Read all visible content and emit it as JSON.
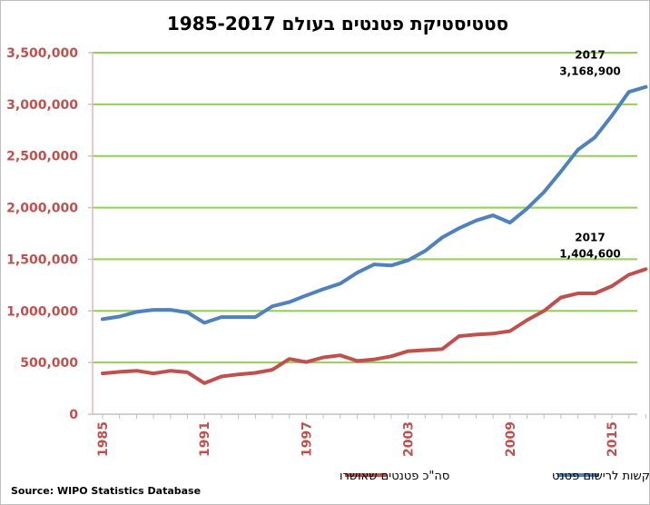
{
  "chart_data": {
    "type": "line",
    "title": "סטטיסטיקת פטנטים בעולם 1985-2017",
    "xlabel": "",
    "ylabel": "",
    "ylim": [
      0,
      3500000
    ],
    "y_ticks": [
      0,
      500000,
      1000000,
      1500000,
      2000000,
      2500000,
      3000000,
      3500000
    ],
    "y_tick_labels": [
      "0",
      "500,000",
      "1,000,000",
      "1,500,000",
      "2,000,000",
      "2,500,000",
      "3,000,000",
      "3,500,000"
    ],
    "x_ticks": [
      1985,
      1991,
      1997,
      2003,
      2009,
      2015
    ],
    "x_tick_labels": [
      "1985",
      "1991",
      "1997",
      "2003",
      "2009",
      "2015"
    ],
    "grid": true,
    "legend_position": "bottom",
    "x": [
      1985,
      1986,
      1987,
      1988,
      1989,
      1990,
      1991,
      1992,
      1993,
      1994,
      1995,
      1996,
      1997,
      1998,
      1999,
      2000,
      2001,
      2002,
      2003,
      2004,
      2005,
      2006,
      2007,
      2008,
      2009,
      2010,
      2011,
      2012,
      2013,
      2014,
      2015,
      2016,
      2017
    ],
    "series": [
      {
        "name": "סה\"כ בקשות לרישום פטנט",
        "color": "#4f81bd",
        "values": [
          920000,
          945000,
          990000,
          1010000,
          1010000,
          985000,
          885000,
          940000,
          940000,
          940000,
          1045000,
          1085000,
          1150000,
          1210000,
          1265000,
          1370000,
          1450000,
          1440000,
          1490000,
          1580000,
          1710000,
          1800000,
          1875000,
          1925000,
          1855000,
          1990000,
          2150000,
          2350000,
          2560000,
          2680000,
          2890000,
          3120000,
          3168900
        ]
      },
      {
        "name": "סה\"כ פטנטים שאושרו",
        "color": "#c0504d",
        "values": [
          395000,
          410000,
          420000,
          395000,
          420000,
          405000,
          300000,
          365000,
          385000,
          400000,
          430000,
          535000,
          505000,
          550000,
          570000,
          515000,
          530000,
          560000,
          610000,
          620000,
          630000,
          755000,
          770000,
          780000,
          805000,
          910000,
          1000000,
          1130000,
          1170000,
          1170000,
          1240000,
          1350000,
          1404600
        ]
      }
    ],
    "annotations": [
      {
        "series": 0,
        "year_label": "2017",
        "value_label": "3,168,900"
      },
      {
        "series": 1,
        "year_label": "2017",
        "value_label": "1,404,600"
      }
    ],
    "source": "Source: WIPO Statistics Database"
  }
}
